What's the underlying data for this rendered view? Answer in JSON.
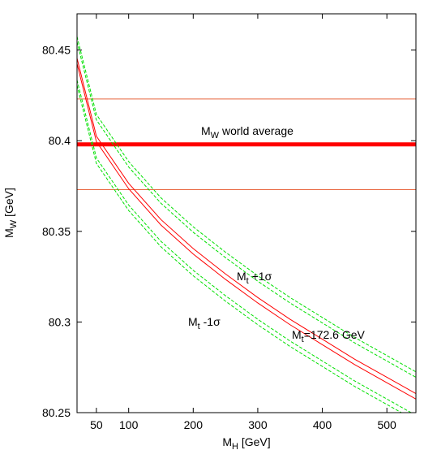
{
  "chart_data": {
    "type": "line",
    "x": [
      20,
      50,
      100,
      150,
      200,
      250,
      300,
      350,
      400,
      450,
      500,
      545
    ],
    "series": [
      {
        "color": "#ff0000",
        "dashed": false,
        "values": [
          80.4455,
          80.4025,
          80.3765,
          80.3565,
          80.3405,
          80.3265,
          80.3135,
          80.3015,
          80.2905,
          80.2795,
          80.2695,
          80.2605
        ]
      },
      {
        "color": "#ff0000",
        "dashed": false,
        "values": [
          80.4425,
          80.3995,
          80.3735,
          80.3535,
          80.3375,
          80.3235,
          80.3105,
          80.2985,
          80.2875,
          80.2765,
          80.2665,
          80.2575
        ]
      },
      {
        "color": "#00e000",
        "dashed": true,
        "values": [
          80.4575,
          80.4145,
          80.3885,
          80.3685,
          80.3525,
          80.3385,
          80.3255,
          80.3135,
          80.3025,
          80.2915,
          80.2815,
          80.2725
        ]
      },
      {
        "color": "#00e000",
        "dashed": true,
        "values": [
          80.4545,
          80.4115,
          80.3855,
          80.3655,
          80.3495,
          80.3355,
          80.3225,
          80.3105,
          80.2995,
          80.2885,
          80.2785,
          80.2695
        ]
      },
      {
        "color": "#00e000",
        "dashed": true,
        "values": [
          80.4335,
          80.3905,
          80.3645,
          80.3445,
          80.3285,
          80.3145,
          80.3015,
          80.2895,
          80.2785,
          80.2675,
          80.2575,
          80.2485
        ]
      },
      {
        "color": "#00e000",
        "dashed": true,
        "values": [
          80.4305,
          80.3875,
          80.3615,
          80.3415,
          80.3255,
          80.3115,
          80.2985,
          80.2865,
          80.2755,
          80.2645,
          80.2545,
          80.2455
        ]
      }
    ],
    "world_average": {
      "value": 80.398,
      "color": "#ff0000"
    },
    "band": {
      "values": [
        80.423,
        80.373
      ],
      "color": "#e8643c"
    },
    "xlim": [
      20,
      545
    ],
    "ylim": [
      80.25,
      80.47
    ],
    "xticks": [
      50,
      100,
      200,
      300,
      400,
      500
    ],
    "yticks": [
      80.25,
      80.3,
      80.35,
      80.4,
      80.45
    ],
    "x_label": {
      "main": "M",
      "sub": "H",
      "rest": " [GeV]"
    },
    "y_label": {
      "main": "M",
      "sub": "W",
      "rest": " [GeV]"
    },
    "annotations": [
      {
        "main": "M",
        "sub": "W",
        "rest": " world average"
      },
      {
        "main": "M",
        "sub": "t",
        "rest": " +1σ"
      },
      {
        "main": "M",
        "sub": "t",
        "rest": " -1σ"
      },
      {
        "main": "M",
        "sub": "t",
        "rest": "=172.6 GeV"
      }
    ]
  }
}
